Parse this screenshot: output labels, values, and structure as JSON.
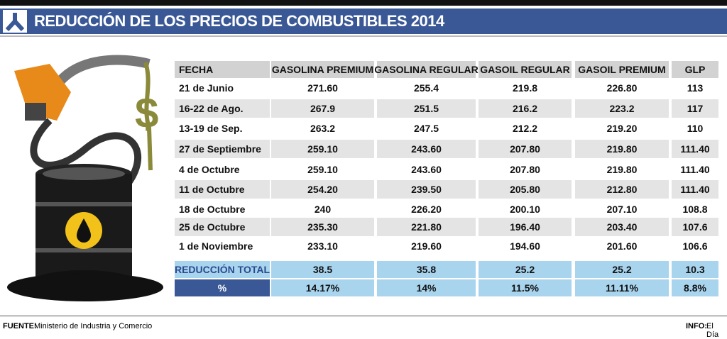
{
  "header": {
    "title": "REDUCCIÓN DE LOS PRECIOS DE COMBUSTIBLES 2014"
  },
  "table": {
    "columns": [
      "FECHA",
      "GASOLINA PREMIUM",
      "GASOLINA REGULAR",
      "GASOIL REGULAR",
      "GASOIL PREMIUM",
      "GLP"
    ],
    "rows": [
      [
        "21 de Junio",
        "271.60",
        "255.4",
        "219.8",
        "226.80",
        "113"
      ],
      [
        "16-22 de Ago.",
        "267.9",
        "251.5",
        "216.2",
        "223.2",
        "117"
      ],
      [
        "13-19 de Sep.",
        "263.2",
        "247.5",
        "212.2",
        "219.20",
        "110"
      ],
      [
        "27 de Septiembre",
        "259.10",
        "243.60",
        "207.80",
        "219.80",
        "111.40"
      ],
      [
        "4 de Octubre",
        "259.10",
        "243.60",
        "207.80",
        "219.80",
        "111.40"
      ],
      [
        "11 de Octubre",
        "254.20",
        "239.50",
        "205.80",
        "212.80",
        "111.40"
      ],
      [
        "18 de Octubre",
        "240",
        "226.20",
        "200.10",
        "207.10",
        "108.8"
      ],
      [
        "25 de Octubre",
        "235.30",
        "221.80",
        "196.40",
        "203.40",
        "107.6"
      ],
      [
        "1 de Noviembre",
        "233.10",
        "219.60",
        "194.60",
        "201.60",
        "106.6"
      ]
    ],
    "totals": {
      "label": "REDUCCIÓN TOTAL",
      "values": [
        "38.5",
        "35.8",
        "25.2",
        "25.2",
        "10.3"
      ]
    },
    "percent": {
      "label": "%",
      "values": [
        "14.17%",
        "14%",
        "11.5%",
        "11.11%",
        "8.8%"
      ]
    }
  },
  "footer": {
    "source_label": "FUENTE:",
    "source": "Ministerio de Industria y Comercio",
    "info_label": "INFO:",
    "info": "El Día"
  }
}
